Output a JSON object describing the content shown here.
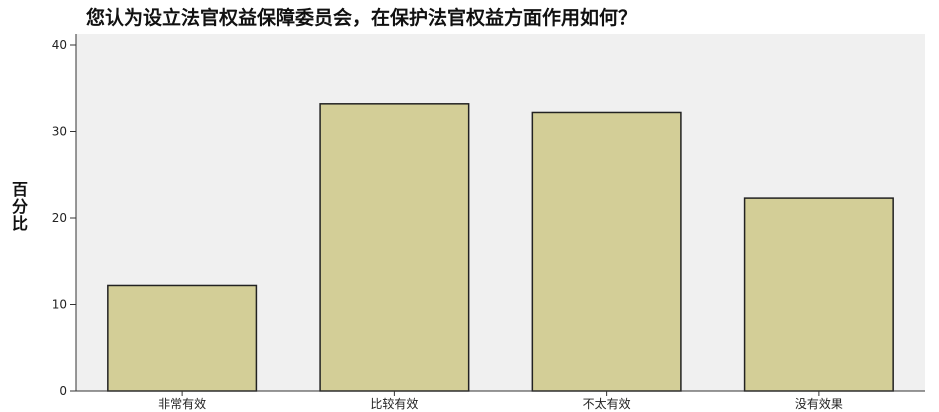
{
  "chart_data": {
    "type": "bar",
    "title": "您认为设立法官权益保障委员会，在保护法官权益方面作用如何？",
    "xlabel": "",
    "ylabel": "百分比",
    "categories": [
      "非常有效",
      "比较有效",
      "不太有效",
      "没有效果"
    ],
    "values": [
      12.2,
      33.2,
      32.2,
      22.3
    ],
    "ylim": [
      0,
      40
    ],
    "yticks": [
      0,
      10,
      20,
      30,
      40
    ],
    "grid": false,
    "legend": "none",
    "colors": {
      "plot_background": "#f0f0f0",
      "bar_fill": "#d3ce97",
      "bar_stroke": "#222222"
    }
  }
}
